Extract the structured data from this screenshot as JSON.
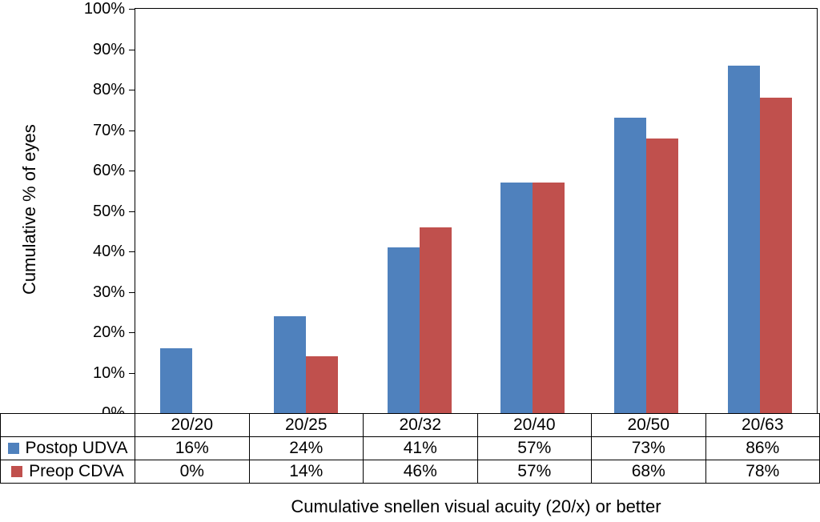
{
  "chart_data": {
    "type": "bar",
    "title": "",
    "xlabel": "Cumulative snellen visual acuity (20/x) or better",
    "ylabel": "Cumulative % of eyes",
    "ylim": [
      0,
      100
    ],
    "ytick_step": 10,
    "yticks": [
      "100%",
      "90%",
      "80%",
      "70%",
      "60%",
      "50%",
      "40%",
      "30%",
      "20%",
      "10%",
      "0%"
    ],
    "grid": false,
    "legend_position": "table-left",
    "categories": [
      "20/20",
      "20/25",
      "20/32",
      "20/40",
      "20/50",
      "20/63"
    ],
    "series": [
      {
        "name": "Postop UDVA",
        "color": "#4F81BD",
        "values": [
          16,
          24,
          41,
          57,
          73,
          86
        ],
        "labels": [
          "16%",
          "24%",
          "41%",
          "57%",
          "73%",
          "86%"
        ]
      },
      {
        "name": "Preop CDVA",
        "color": "#C0504D",
        "values": [
          0,
          14,
          46,
          57,
          68,
          78
        ],
        "labels": [
          "0%",
          "14%",
          "46%",
          "57%",
          "68%",
          "78%"
        ]
      }
    ]
  }
}
